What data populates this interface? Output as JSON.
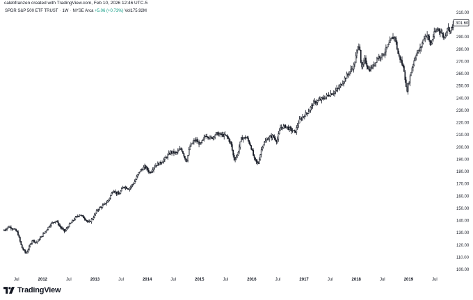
{
  "header": {
    "credit": "calebfranzen created with TradingView.com, Feb 10, 2026 12:46 UTC-5"
  },
  "legend": {
    "symbol": "SPDR S&P 500 ETF TRUST",
    "interval": "1W",
    "exchange": "NYSE Arca",
    "change": "+5.06 (+0.73%)",
    "volume": "Vol175.92M"
  },
  "branding": {
    "logo_text": "TradingView",
    "logo_icon": "tradingview-logo-icon"
  },
  "colors": {
    "candle": "#131722",
    "price_badge_border": "#131722",
    "axis_text": "#131722"
  },
  "chart_data": {
    "type": "line",
    "subtype": "candlestick",
    "title": "",
    "xlabel": "",
    "ylabel": "",
    "ylim": [
      95,
      310
    ],
    "y_axis_position": "right",
    "grid": false,
    "y_ticks": [
      100,
      110,
      120,
      130,
      140,
      150,
      160,
      170,
      180,
      190,
      200,
      210,
      220,
      230,
      240,
      250,
      260,
      270,
      280,
      290,
      300,
      310
    ],
    "y_tick_labels": [
      "100.00",
      "110.00",
      "120.00",
      "130.00",
      "140.00",
      "150.00",
      "160.00",
      "170.00",
      "180.00",
      "190.00",
      "200.00",
      "210.00",
      "220.00",
      "230.00",
      "240.00",
      "250.00",
      "260.00",
      "270.00",
      "280.00",
      "290.00",
      "300.00",
      "310.00"
    ],
    "last_price_label": "301.60",
    "last_price": 301.6,
    "x_range": [
      2011.25,
      2019.9
    ],
    "x_ticks": [
      {
        "t": 2011.5,
        "label": "Jul"
      },
      {
        "t": 2012.0,
        "label": "2012"
      },
      {
        "t": 2012.5,
        "label": "Jul"
      },
      {
        "t": 2013.0,
        "label": "2013"
      },
      {
        "t": 2013.5,
        "label": "Jul"
      },
      {
        "t": 2014.0,
        "label": "2014"
      },
      {
        "t": 2014.5,
        "label": "Jul"
      },
      {
        "t": 2015.0,
        "label": "2015"
      },
      {
        "t": 2015.5,
        "label": "Jul"
      },
      {
        "t": 2016.0,
        "label": "2016"
      },
      {
        "t": 2016.5,
        "label": "Jul"
      },
      {
        "t": 2017.0,
        "label": "2017"
      },
      {
        "t": 2017.5,
        "label": "Jul"
      },
      {
        "t": 2018.0,
        "label": "2018"
      },
      {
        "t": 2018.5,
        "label": "Jul"
      },
      {
        "t": 2019.0,
        "label": "2019"
      },
      {
        "t": 2019.5,
        "label": "Jul"
      }
    ],
    "series": [
      {
        "points": [
          [
            2011.26,
            132
          ],
          [
            2011.35,
            135
          ],
          [
            2011.45,
            133
          ],
          [
            2011.52,
            130
          ],
          [
            2011.6,
            118
          ],
          [
            2011.68,
            113
          ],
          [
            2011.74,
            118
          ],
          [
            2011.8,
            124
          ],
          [
            2011.88,
            122
          ],
          [
            2011.96,
            126
          ],
          [
            2012.05,
            131
          ],
          [
            2012.15,
            137
          ],
          [
            2012.25,
            140
          ],
          [
            2012.35,
            134
          ],
          [
            2012.42,
            131
          ],
          [
            2012.5,
            136
          ],
          [
            2012.6,
            141
          ],
          [
            2012.7,
            145
          ],
          [
            2012.8,
            142
          ],
          [
            2012.88,
            138
          ],
          [
            2012.96,
            142
          ],
          [
            2013.05,
            149
          ],
          [
            2013.15,
            152
          ],
          [
            2013.25,
            156
          ],
          [
            2013.35,
            165
          ],
          [
            2013.45,
            161
          ],
          [
            2013.55,
            168
          ],
          [
            2013.65,
            166
          ],
          [
            2013.75,
            171
          ],
          [
            2013.85,
            180
          ],
          [
            2013.96,
            184
          ],
          [
            2014.05,
            179
          ],
          [
            2014.15,
            185
          ],
          [
            2014.25,
            187
          ],
          [
            2014.35,
            191
          ],
          [
            2014.45,
            196
          ],
          [
            2014.55,
            195
          ],
          [
            2014.65,
            199
          ],
          [
            2014.75,
            188
          ],
          [
            2014.82,
            201
          ],
          [
            2014.92,
            206
          ],
          [
            2015.02,
            202
          ],
          [
            2015.12,
            210
          ],
          [
            2015.22,
            207
          ],
          [
            2015.32,
            211
          ],
          [
            2015.42,
            210
          ],
          [
            2015.52,
            209
          ],
          [
            2015.6,
            203
          ],
          [
            2015.66,
            190
          ],
          [
            2015.72,
            193
          ],
          [
            2015.8,
            207
          ],
          [
            2015.9,
            208
          ],
          [
            2015.98,
            201
          ],
          [
            2016.05,
            190
          ],
          [
            2016.12,
            186
          ],
          [
            2016.2,
            201
          ],
          [
            2016.3,
            207
          ],
          [
            2016.4,
            209
          ],
          [
            2016.48,
            205
          ],
          [
            2016.55,
            216
          ],
          [
            2016.65,
            217
          ],
          [
            2016.75,
            214
          ],
          [
            2016.83,
            212
          ],
          [
            2016.9,
            221
          ],
          [
            2016.98,
            225
          ],
          [
            2017.08,
            229
          ],
          [
            2017.18,
            236
          ],
          [
            2017.28,
            238
          ],
          [
            2017.38,
            240
          ],
          [
            2017.48,
            243
          ],
          [
            2017.58,
            245
          ],
          [
            2017.68,
            249
          ],
          [
            2017.78,
            256
          ],
          [
            2017.88,
            262
          ],
          [
            2017.96,
            267
          ],
          [
            2018.02,
            280
          ],
          [
            2018.06,
            285
          ],
          [
            2018.1,
            263
          ],
          [
            2018.16,
            272
          ],
          [
            2018.24,
            263
          ],
          [
            2018.32,
            266
          ],
          [
            2018.4,
            273
          ],
          [
            2018.5,
            275
          ],
          [
            2018.6,
            282
          ],
          [
            2018.68,
            289
          ],
          [
            2018.74,
            290
          ],
          [
            2018.8,
            276
          ],
          [
            2018.86,
            270
          ],
          [
            2018.92,
            262
          ],
          [
            2018.96,
            245
          ],
          [
            2019.0,
            252
          ],
          [
            2019.06,
            264
          ],
          [
            2019.14,
            276
          ],
          [
            2019.22,
            280
          ],
          [
            2019.3,
            290
          ],
          [
            2019.36,
            292
          ],
          [
            2019.42,
            283
          ],
          [
            2019.48,
            292
          ],
          [
            2019.56,
            297
          ],
          [
            2019.62,
            294
          ],
          [
            2019.68,
            289
          ],
          [
            2019.74,
            298
          ],
          [
            2019.8,
            295
          ],
          [
            2019.86,
            301.6
          ]
        ]
      }
    ]
  }
}
